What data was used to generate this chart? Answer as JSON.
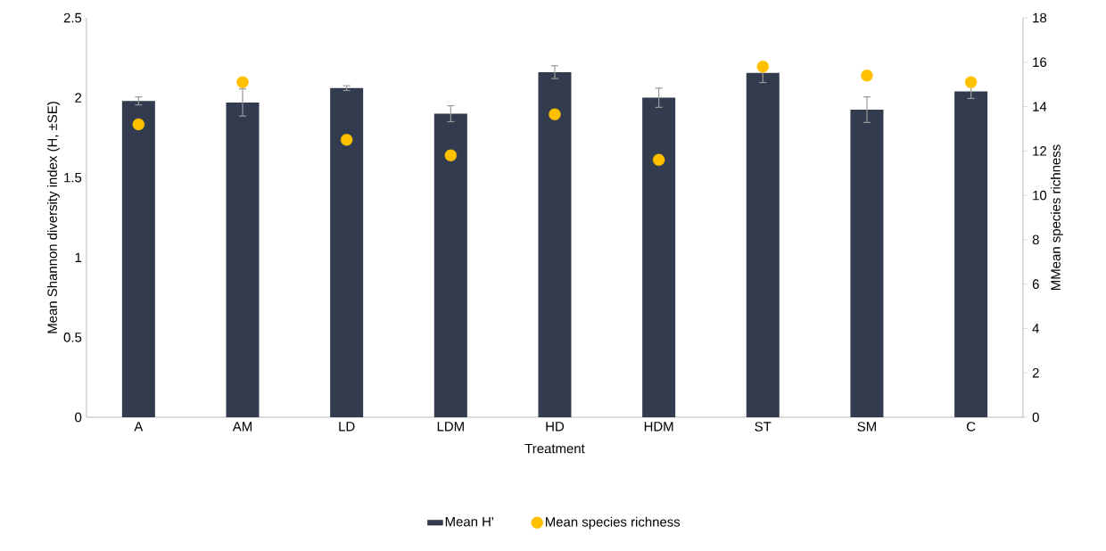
{
  "chart_data": {
    "type": "bar",
    "xlabel": "Treatment",
    "ylabel": "Mean Shannon diversity index (H, ±SE)",
    "y2label": "MMean species richness",
    "categories": [
      "A",
      "AM",
      "LD",
      "LDM",
      "HD",
      "HDM",
      "ST",
      "SM",
      "C"
    ],
    "series": [
      {
        "name": "Mean H'",
        "color": "#323c4e",
        "values": [
          1.98,
          1.97,
          2.06,
          1.9,
          2.16,
          2.0,
          2.155,
          1.925,
          2.04
        ],
        "errors": [
          0.025,
          0.085,
          0.015,
          0.05,
          0.04,
          0.06,
          0.06,
          0.08,
          0.045
        ]
      },
      {
        "name": "Mean species richness",
        "type": "scatter",
        "axis": "y2",
        "color": "#ffc000",
        "values": [
          13.2,
          15.1,
          12.5,
          11.8,
          13.65,
          11.6,
          15.8,
          15.4,
          15.1
        ]
      }
    ],
    "ylim": [
      0,
      2.5
    ],
    "yticks": [
      0,
      0.5,
      1,
      1.5,
      2,
      2.5
    ],
    "y2lim": [
      0,
      18
    ],
    "y2ticks": [
      0,
      2,
      4,
      6,
      8,
      10,
      12,
      14,
      16,
      18
    ],
    "legend": "bottom",
    "marker": "circle",
    "grid": false
  }
}
